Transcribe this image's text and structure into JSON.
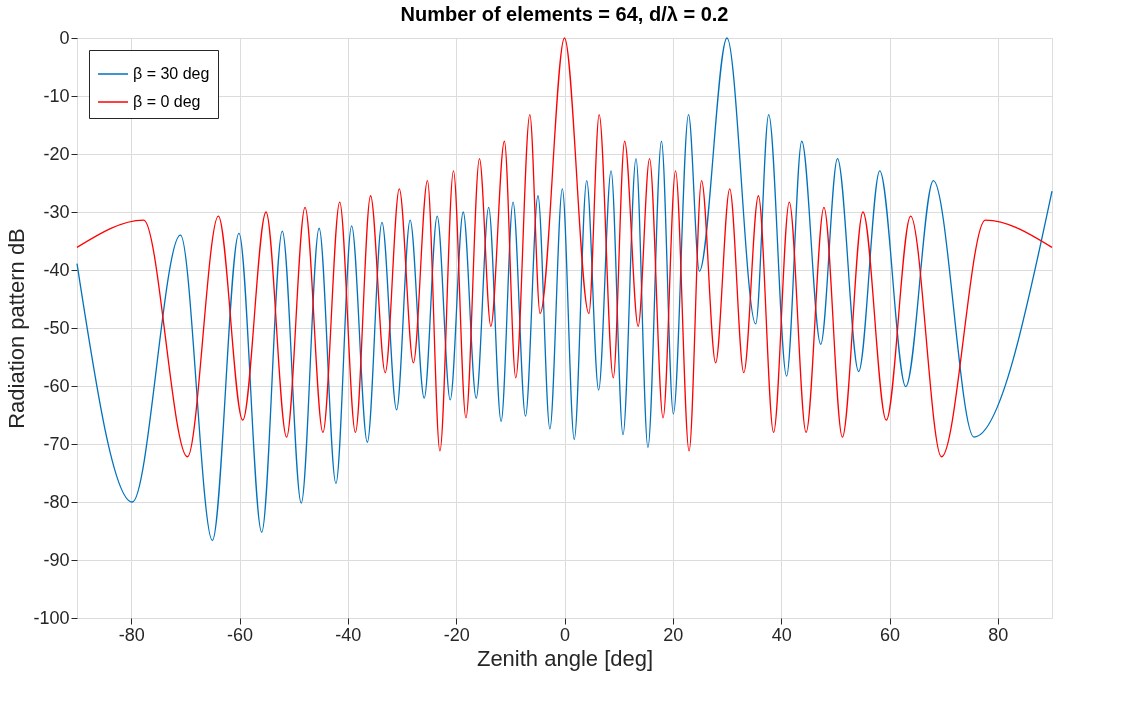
{
  "chart_data": {
    "type": "line",
    "title": "Number of elements = 64, d/λ = 0.2",
    "xlabel": "Zenith angle [deg]",
    "ylabel": "Radiation pattern dB",
    "xlim": [
      -90,
      90
    ],
    "xticks": [
      -80,
      -60,
      -40,
      -20,
      0,
      20,
      40,
      60,
      80
    ],
    "ylim": [
      -100,
      0
    ],
    "yticks": [
      -100,
      -90,
      -80,
      -70,
      -60,
      -50,
      -40,
      -30,
      -20,
      -10,
      0
    ],
    "grid": true,
    "legend": "top left",
    "marker": "none",
    "line_style": "solid",
    "series": [
      {
        "name": "β = 30 deg",
        "color": "#0072bd",
        "x": [
          -90,
          -79.8,
          -70.9,
          -65.0,
          -60.1,
          -55.9,
          -52.1,
          -48.6,
          -45.3,
          -42.2,
          -39.3,
          -36.4,
          -33.7,
          -31.0,
          -28.5,
          -25.9,
          -23.5,
          -21.1,
          -18.7,
          -16.3,
          -14.0,
          -11.7,
          -9.5,
          -7.2,
          -4.9,
          -2.7,
          -0.4,
          1.8,
          4.1,
          6.3,
          8.6,
          10.8,
          13.2,
          15.4,
          17.9,
          20.1,
          22.9,
          24.9,
          30,
          35.3,
          37.7,
          41.0,
          43.8,
          47.3,
          50.4,
          54.3,
          58.2,
          63.0,
          68.1,
          75.6,
          90
        ],
        "values": [
          -38.9,
          -80.0,
          -34.0,
          -86.6,
          -33.7,
          -85.2,
          -33.3,
          -80.2,
          -32.8,
          -76.8,
          -32.4,
          -69.7,
          -31.8,
          -64.1,
          -31.4,
          -62.1,
          -30.7,
          -62.4,
          -30.0,
          -62.1,
          -29.2,
          -66.1,
          -28.3,
          -65.2,
          -27.2,
          -67.4,
          -26.0,
          -69.2,
          -24.6,
          -60.7,
          -22.9,
          -68.4,
          -20.8,
          -70.6,
          -17.8,
          -64.8,
          -13.2,
          -40.2,
          0,
          -49.3,
          -13.2,
          -58.3,
          -17.8,
          -52.8,
          -20.8,
          -57.5,
          -22.9,
          -60.1,
          -24.6,
          -68.8,
          -26.4
        ]
      },
      {
        "name": "β = 0 deg",
        "color": "#ff0000",
        "x": [
          -90,
          -77.7,
          -69.6,
          -63.9,
          -59.4,
          -55.1,
          -51.3,
          -47.9,
          -44.6,
          -41.5,
          -38.6,
          -35.8,
          -33.1,
          -30.5,
          -27.9,
          -25.3,
          -23.0,
          -20.5,
          -18.2,
          -15.7,
          -13.6,
          -11.1,
          -9.0,
          -6.4,
          -4.5,
          0,
          4.5,
          6.4,
          9.0,
          11.1,
          13.6,
          15.7,
          18.2,
          20.5,
          23.0,
          25.3,
          27.9,
          30.5,
          33.1,
          35.8,
          38.6,
          41.5,
          44.6,
          47.9,
          51.3,
          55.1,
          59.4,
          63.9,
          69.6,
          77.7,
          90
        ],
        "values": [
          -36.1,
          -31.4,
          -72.2,
          -30.7,
          -65.9,
          -30.0,
          -68.8,
          -29.2,
          -68.0,
          -28.3,
          -68.0,
          -27.2,
          -57.7,
          -26.0,
          -56.0,
          -24.6,
          -71.2,
          -22.9,
          -65.5,
          -20.8,
          -49.7,
          -17.8,
          -58.6,
          -13.2,
          -47.5,
          0,
          -47.5,
          -13.2,
          -58.6,
          -17.8,
          -49.7,
          -20.8,
          -65.5,
          -22.9,
          -71.2,
          -24.6,
          -56.0,
          -26.0,
          -57.7,
          -27.2,
          -68.0,
          -28.3,
          -68.0,
          -29.2,
          -68.8,
          -30.0,
          -65.9,
          -30.7,
          -72.2,
          -31.4,
          -36.1
        ]
      }
    ]
  }
}
